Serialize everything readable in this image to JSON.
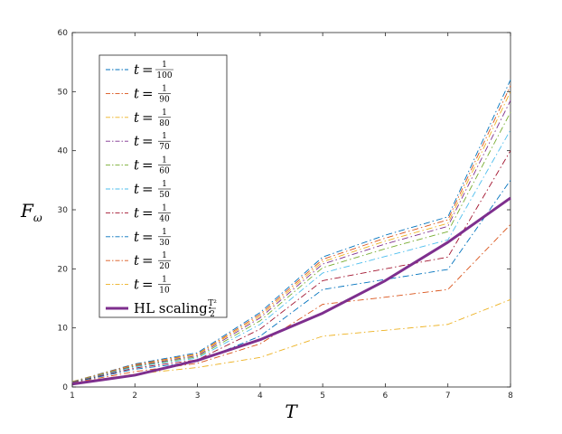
{
  "chart_data": {
    "type": "line",
    "title": "",
    "xlabel": "T",
    "ylabel": "F",
    "ylabel_sub": "ω",
    "xlim": [
      1,
      8
    ],
    "ylim": [
      0,
      60
    ],
    "x": [
      1,
      2,
      3,
      4,
      5,
      6,
      7,
      8
    ],
    "xticks": [
      "1",
      "2",
      "3",
      "4",
      "5",
      "6",
      "7",
      "8"
    ],
    "yticks": [
      "0",
      "10",
      "20",
      "30",
      "40",
      "50",
      "60"
    ],
    "grid": false,
    "legend_position": "top-left",
    "series": [
      {
        "t_num": "1",
        "t_den": "100",
        "color": "#0072BD",
        "style": "dashdot",
        "values": [
          0.9,
          3.9,
          5.8,
          12.6,
          22.0,
          25.7,
          28.8,
          52.0
        ]
      },
      {
        "t_num": "1",
        "t_den": "90",
        "color": "#D95319",
        "style": "dashdot",
        "values": [
          0.9,
          3.8,
          5.6,
          12.3,
          21.6,
          25.2,
          28.3,
          51.0
        ]
      },
      {
        "t_num": "1",
        "t_den": "80",
        "color": "#EDB120",
        "style": "dashdot",
        "values": [
          0.9,
          3.7,
          5.5,
          12.0,
          21.2,
          24.7,
          27.7,
          50.0
        ]
      },
      {
        "t_num": "1",
        "t_den": "70",
        "color": "#7E2F8E",
        "style": "dashdot",
        "values": [
          0.85,
          3.6,
          5.3,
          11.7,
          20.8,
          24.2,
          27.2,
          48.5
        ]
      },
      {
        "t_num": "1",
        "t_den": "60",
        "color": "#77AC30",
        "style": "dashdot",
        "values": [
          0.85,
          3.5,
          5.1,
          11.2,
          20.2,
          23.4,
          26.3,
          46.5
        ]
      },
      {
        "t_num": "1",
        "t_den": "50",
        "color": "#4DBEEE",
        "style": "dashdot",
        "values": [
          0.8,
          3.4,
          4.9,
          10.6,
          19.3,
          22.1,
          24.9,
          43.5
        ]
      },
      {
        "t_num": "1",
        "t_den": "40",
        "color": "#A2142F",
        "style": "dashdot",
        "values": [
          0.8,
          3.2,
          4.6,
          9.8,
          18.0,
          20.0,
          22.0,
          40.0
        ]
      },
      {
        "t_num": "1",
        "t_den": "30",
        "color": "#0072BD",
        "style": "dashdot",
        "values": [
          0.75,
          3.0,
          4.3,
          8.6,
          16.5,
          18.2,
          19.9,
          35.0
        ]
      },
      {
        "t_num": "1",
        "t_den": "20",
        "color": "#D95319",
        "style": "dashdot",
        "values": [
          0.7,
          2.6,
          4.0,
          7.3,
          14.0,
          15.2,
          16.5,
          27.5
        ]
      },
      {
        "t_num": "1",
        "t_den": "10",
        "color": "#EDB120",
        "style": "dashdot",
        "values": [
          0.6,
          2.2,
          3.3,
          5.0,
          8.6,
          9.6,
          10.6,
          14.8
        ]
      },
      {
        "name": "HL scaling:",
        "t_num": "T²",
        "t_den": "2",
        "color": "#7E2F8E",
        "style": "solid",
        "width": 3,
        "values": [
          0.5,
          2.0,
          4.5,
          8.0,
          12.5,
          18.0,
          24.5,
          32.0
        ]
      }
    ]
  }
}
